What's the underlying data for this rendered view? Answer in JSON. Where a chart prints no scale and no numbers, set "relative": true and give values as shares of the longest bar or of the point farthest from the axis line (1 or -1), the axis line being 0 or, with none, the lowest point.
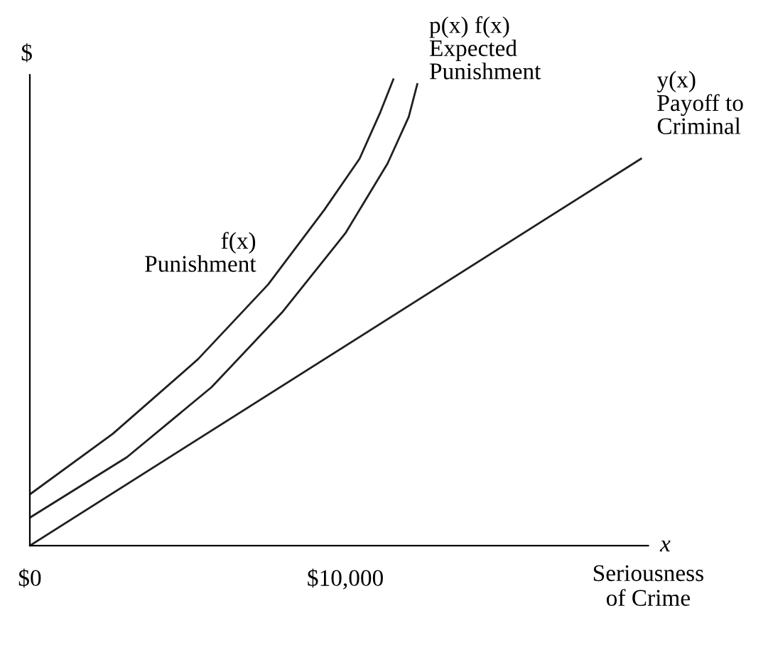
{
  "chart_data": {
    "type": "line",
    "relative": true,
    "ylabel": "$",
    "xlabel": "Seriousness\nof Crime",
    "annotations": [
      "x"
    ],
    "xlim": [
      0,
      19600
    ],
    "xticks": [
      {
        "value": 0,
        "label": "$0"
      },
      {
        "value": 10000,
        "label": "$10,000"
      }
    ],
    "tick_labels": "x",
    "grid": false,
    "legend": false,
    "series": [
      {
        "name": "f(x)\nPunishment",
        "color": "#231f20",
        "x": [
          0,
          2630,
          5330,
          7550,
          9330,
          10450,
          11110,
          11520
        ],
        "values": [
          0.11,
          0.24,
          0.4,
          0.56,
          0.72,
          0.83,
          0.93,
          1.0
        ]
      },
      {
        "name": "p(x) f(x)\nExpected\nPunishment",
        "color": "#231f20",
        "x": [
          0,
          3080,
          5760,
          7990,
          10000,
          11340,
          12010,
          12280
        ],
        "values": [
          0.06,
          0.19,
          0.34,
          0.5,
          0.67,
          0.82,
          0.92,
          0.99
        ]
      },
      {
        "name": "y(x)\nPayoff to\nCriminal",
        "color": "#231f20",
        "x": [
          0,
          19370
        ],
        "values": [
          0,
          0.83
        ]
      }
    ]
  }
}
